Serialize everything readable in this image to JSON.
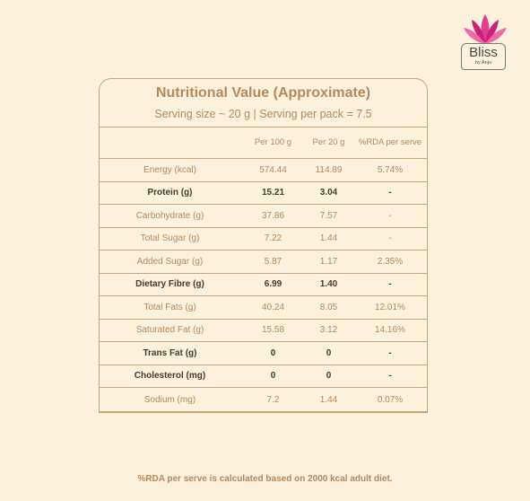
{
  "brand": {
    "name": "Bliss",
    "tagline": "by Anju",
    "accent": "#e23d8e"
  },
  "colors": {
    "background": "#fbf1dc",
    "table_text": "#b7895a",
    "bold_text": "#4a3a2c",
    "border": "#c8a577"
  },
  "title": "Nutritional Value (Approximate)",
  "subtitle": "Serving size ~ 20 g | Serving per pack = 7.5",
  "columns": [
    "",
    "Per 100 g",
    "Per 20 g",
    "%RDA per serve"
  ],
  "rows": [
    {
      "label": "Energy (kcal)",
      "per100": "574.44",
      "per20": "114.89",
      "rda": "5.74%",
      "bold": false
    },
    {
      "label": "Protein (g)",
      "per100": "15.21",
      "per20": "3.04",
      "rda": "-",
      "bold": true
    },
    {
      "label": "Carbohydrate (g)",
      "per100": "37.86",
      "per20": "7.57",
      "rda": "-",
      "bold": false
    },
    {
      "label": "Total Sugar (g)",
      "per100": "7.22",
      "per20": "1.44",
      "rda": "-",
      "bold": false
    },
    {
      "label": "Added Sugar (g)",
      "per100": "5.87",
      "per20": "1.17",
      "rda": "2.35%",
      "bold": false
    },
    {
      "label": "Dietary Fibre (g)",
      "per100": "6.99",
      "per20": "1.40",
      "rda": "-",
      "bold": true
    },
    {
      "label": "Total Fats (g)",
      "per100": "40.24",
      "per20": "8.05",
      "rda": "12.01%",
      "bold": false
    },
    {
      "label": "Saturated Fat (g)",
      "per100": "15.58",
      "per20": "3.12",
      "rda": "14.16%",
      "bold": false
    },
    {
      "label": "Trans Fat (g)",
      "per100": "0",
      "per20": "0",
      "rda": "-",
      "bold": true
    },
    {
      "label": "Cholesterol (mg)",
      "per100": "0",
      "per20": "0",
      "rda": "-",
      "bold": true
    },
    {
      "label": "Sodium (mg)",
      "per100": "7.2",
      "per20": "1.44",
      "rda": "0.07%",
      "bold": false
    }
  ],
  "footnote": "%RDA per serve is calculated based on 2000 kcal adult diet."
}
